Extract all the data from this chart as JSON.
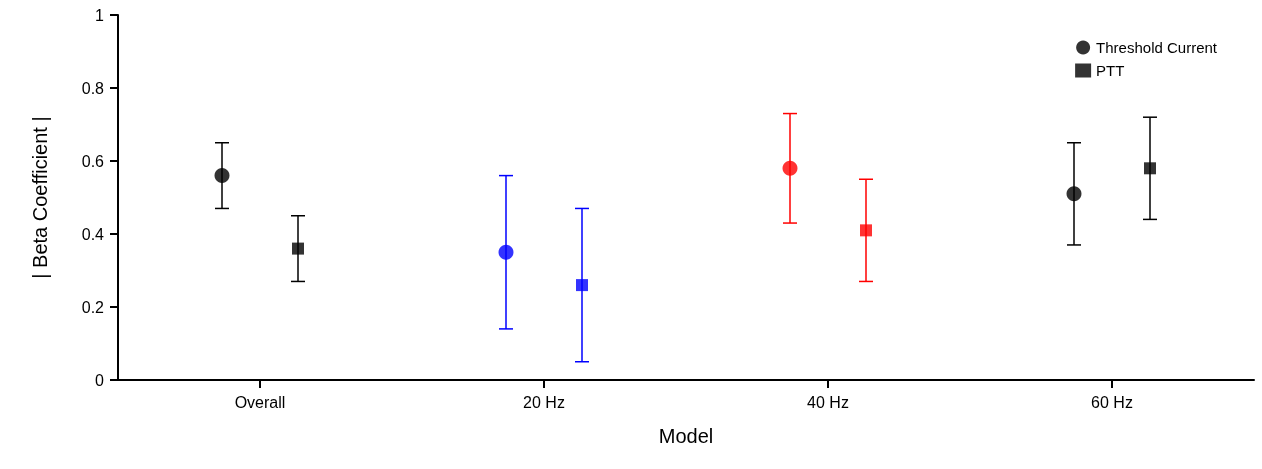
{
  "chart_data": {
    "type": "scatter",
    "xlabel": "Model",
    "ylabel": "| Beta Coefficient |",
    "categories": [
      "Overall",
      "20 Hz",
      "40 Hz",
      "60 Hz"
    ],
    "series": [
      {
        "name": "Threshold Current",
        "marker": "circle",
        "color": "#000000",
        "colors": [
          "#000000",
          "#0000ff",
          "#ff0000",
          "#000000"
        ],
        "values": [
          0.56,
          0.35,
          0.58,
          0.51
        ],
        "errors": [
          [
            0.47,
            0.65
          ],
          [
            0.14,
            0.56
          ],
          [
            0.43,
            0.73
          ],
          [
            0.37,
            0.65
          ]
        ]
      },
      {
        "name": "PTT",
        "marker": "square",
        "color": "#000000",
        "colors": [
          "#000000",
          "#0000ff",
          "#ff0000",
          "#000000"
        ],
        "values": [
          0.36,
          0.26,
          0.41,
          0.58
        ],
        "errors": [
          [
            0.27,
            0.45
          ],
          [
            0.05,
            0.47
          ],
          [
            0.27,
            0.55
          ],
          [
            0.44,
            0.72
          ]
        ]
      }
    ],
    "ylim": [
      0,
      1
    ],
    "yticks": [
      0,
      0.2,
      0.4,
      0.6,
      0.8,
      1
    ],
    "grid": false,
    "legend": "top right"
  }
}
